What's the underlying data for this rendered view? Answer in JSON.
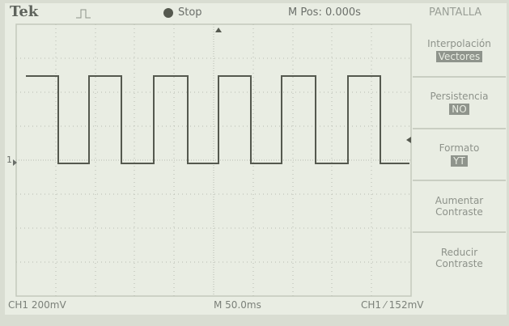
{
  "header": {
    "brand": "Tek",
    "status": "Stop",
    "position": "M Pos: 0.000s",
    "menu_title": "PANTALLA"
  },
  "menu": [
    {
      "label": "Interpolación",
      "value": "Vectores"
    },
    {
      "label": "Persistencia",
      "value": "NO"
    },
    {
      "label": "Formato",
      "value": "YT"
    },
    {
      "label": "Aumentar Contraste"
    },
    {
      "label": "Reducir Contraste"
    }
  ],
  "markers": {
    "channel": "1"
  },
  "footer": {
    "channel_scale": "CH1  200mV",
    "timebase": "M 50.0ms",
    "trigger": "CH1 ⁄ 152mV"
  }
}
